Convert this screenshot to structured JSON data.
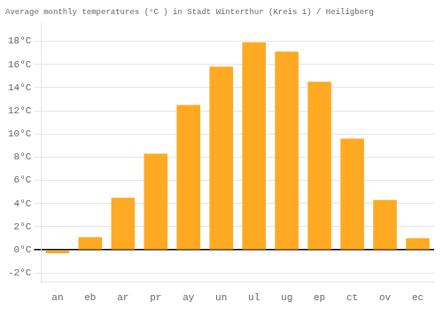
{
  "chart_data": {
    "type": "bar",
    "title": "Average monthly temperatures (°C ) in Stadt Winterthur (Kreis 1) / Heiligberg",
    "categories": [
      "an",
      "eb",
      "ar",
      "pr",
      "ay",
      "un",
      "ul",
      "ug",
      "ep",
      "ct",
      "ov",
      "ec"
    ],
    "values": [
      -0.3,
      1.1,
      4.5,
      8.3,
      12.5,
      15.8,
      17.9,
      17.1,
      14.5,
      9.6,
      4.3,
      1.0
    ],
    "color": "#FFAA22",
    "ylim": [
      -2.8,
      19.5
    ],
    "yticks": [
      {
        "value": -2,
        "label": "-2°C"
      },
      {
        "value": 0,
        "label": "0°C"
      },
      {
        "value": 2,
        "label": "2°C"
      },
      {
        "value": 4,
        "label": "4°C"
      },
      {
        "value": 6,
        "label": "6°C"
      },
      {
        "value": 8,
        "label": "8°C"
      },
      {
        "value": 10,
        "label": "10°C"
      },
      {
        "value": 12,
        "label": "12°C"
      },
      {
        "value": 14,
        "label": "14°C"
      },
      {
        "value": 16,
        "label": "16°C"
      },
      {
        "value": 18,
        "label": "18°C"
      }
    ],
    "grid": true
  }
}
